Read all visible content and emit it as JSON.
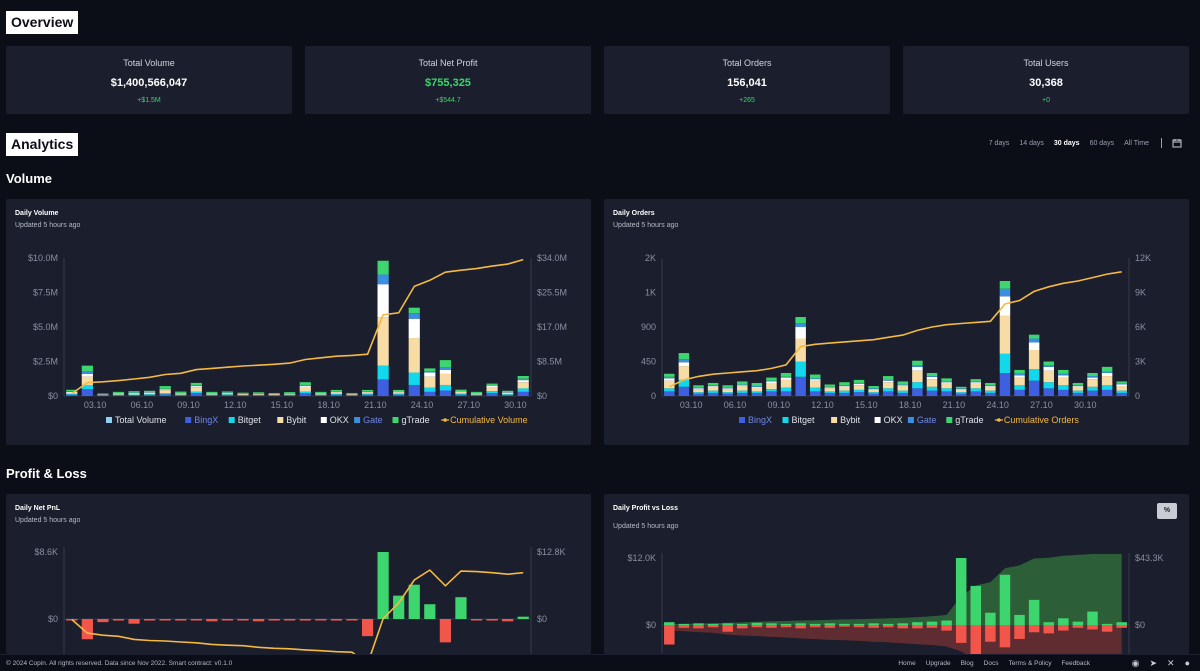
{
  "overview": {
    "label": "Overview",
    "stats": [
      {
        "title": "Total Volume",
        "value": "$1,400,566,047",
        "change": "+$1.5M"
      },
      {
        "title": "Total Net Profit",
        "value": "$755,325",
        "change": "+$544.7"
      },
      {
        "title": "Total Orders",
        "value": "156,041",
        "change": "+265"
      },
      {
        "title": "Total Users",
        "value": "30,368",
        "change": "+0"
      }
    ]
  },
  "analytics": {
    "label": "Analytics",
    "ranges": [
      "7 days",
      "14 days",
      "30 days",
      "60 days",
      "All Time"
    ],
    "active_range": "30 days"
  },
  "volume_heading": "Volume",
  "pnl_heading": "Profit & Loss",
  "panels": {
    "daily_volume": {
      "title": "Daily Volume",
      "updated": "Updated 5 hours ago"
    },
    "daily_orders": {
      "title": "Daily Orders",
      "updated": "Updated 5 hours ago"
    },
    "daily_net_pnl": {
      "title": "Daily Net PnL",
      "updated": "Updated 5 hours ago"
    },
    "daily_profit_loss": {
      "title": "Daily Profit vs Loss",
      "updated": "Updated 5 hours ago",
      "toggle": "%"
    }
  },
  "colors": {
    "total_volume": "#8fd0f5",
    "bingx": "#3d5fe0",
    "bitget": "#13d8ec",
    "bybit": "#f8dca5",
    "okx": "#ffffff",
    "gate": "#3a8fe0",
    "gtrade": "#3dd56d",
    "cumulative": "#f5b942",
    "profit": "#3dd56d",
    "loss": "#f2564b"
  },
  "chart_data": [
    {
      "type": "bar",
      "title": "Daily Volume",
      "stacked": true,
      "x_ticks": [
        "03.10",
        "06.10",
        "09.10",
        "12.10",
        "15.10",
        "18.10",
        "21.10",
        "24.10",
        "27.10",
        "30.10"
      ],
      "y_left_ticks": [
        "$0",
        "$2.5M",
        "$5.0M",
        "$7.5M",
        "$10.0M"
      ],
      "y_right_ticks": [
        "$0",
        "$8.5M",
        "$17.0M",
        "$25.5M",
        "$34.0M"
      ],
      "ylim": [
        0,
        10000000
      ],
      "y2lim": [
        0,
        34000000
      ],
      "legend": [
        "Total Volume",
        "BingX",
        "Bitget",
        "Bybit",
        "OKX",
        "Gate",
        "gTrade",
        "Cumulative Volume"
      ],
      "stack_keys": [
        "bingx",
        "bitget",
        "bybit",
        "okx",
        "gate",
        "gtrade"
      ],
      "stacks": [
        [
          0.1,
          0.05,
          0.1,
          0.05,
          0.05,
          0.1
        ],
        [
          0.5,
          0.3,
          0.6,
          0.2,
          0.2,
          0.4
        ],
        [
          0.04,
          0.02,
          0.04,
          0.02,
          0.02,
          0.04
        ],
        [
          0.06,
          0.04,
          0.08,
          0.02,
          0.02,
          0.08
        ],
        [
          0.07,
          0.04,
          0.09,
          0.03,
          0.02,
          0.1
        ],
        [
          0.08,
          0.05,
          0.1,
          0.03,
          0.02,
          0.1
        ],
        [
          0.12,
          0.08,
          0.22,
          0.06,
          0.04,
          0.2
        ],
        [
          0.06,
          0.04,
          0.08,
          0.02,
          0.02,
          0.1
        ],
        [
          0.2,
          0.12,
          0.32,
          0.08,
          0.06,
          0.17
        ],
        [
          0.06,
          0.04,
          0.08,
          0.02,
          0.02,
          0.08
        ],
        [
          0.08,
          0.04,
          0.08,
          0.03,
          0.02,
          0.08
        ],
        [
          0.05,
          0.03,
          0.06,
          0.02,
          0.02,
          0.06
        ],
        [
          0.06,
          0.03,
          0.06,
          0.02,
          0.02,
          0.08
        ],
        [
          0.05,
          0.03,
          0.06,
          0.01,
          0.01,
          0.06
        ],
        [
          0.06,
          0.04,
          0.06,
          0.02,
          0.02,
          0.08
        ],
        [
          0.2,
          0.12,
          0.3,
          0.1,
          0.08,
          0.2
        ],
        [
          0.06,
          0.04,
          0.08,
          0.02,
          0.02,
          0.08
        ],
        [
          0.1,
          0.05,
          0.12,
          0.03,
          0.02,
          0.12
        ],
        [
          0.05,
          0.03,
          0.05,
          0.02,
          0.02,
          0.05
        ],
        [
          0.1,
          0.06,
          0.12,
          0.03,
          0.03,
          0.1
        ],
        [
          1.2,
          1.0,
          3.5,
          2.4,
          0.7,
          1.0
        ],
        [
          0.1,
          0.06,
          0.12,
          0.04,
          0.02,
          0.1
        ],
        [
          0.8,
          0.9,
          2.5,
          1.4,
          0.4,
          0.4
        ],
        [
          0.3,
          0.3,
          0.8,
          0.3,
          0.1,
          0.2
        ],
        [
          0.4,
          0.4,
          0.8,
          0.3,
          0.2,
          0.5
        ],
        [
          0.1,
          0.08,
          0.12,
          0.04,
          0.02,
          0.1
        ],
        [
          0.06,
          0.04,
          0.08,
          0.02,
          0.02,
          0.08
        ],
        [
          0.2,
          0.15,
          0.3,
          0.1,
          0.05,
          0.1
        ],
        [
          0.08,
          0.05,
          0.1,
          0.03,
          0.02,
          0.1
        ],
        [
          0.3,
          0.25,
          0.45,
          0.15,
          0.1,
          0.2
        ]
      ],
      "cumulative": [
        0.6,
        3.3,
        3.5,
        3.8,
        4.2,
        4.6,
        5.3,
        5.6,
        6.5,
        6.8,
        7.1,
        7.4,
        7.6,
        7.8,
        8.1,
        9.0,
        9.4,
        9.8,
        10.0,
        10.3,
        20.0,
        20.5,
        27.0,
        28.5,
        30.5,
        31.0,
        31.4,
        32.0,
        32.5,
        33.6
      ]
    },
    {
      "type": "bar",
      "title": "Daily Orders",
      "stacked": true,
      "x_ticks": [
        "03.10",
        "06.10",
        "09.10",
        "12.10",
        "15.10",
        "18.10",
        "21.10",
        "24.10",
        "27.10",
        "30.10"
      ],
      "y_left_ticks": [
        "0",
        "450",
        "900",
        "1K",
        "2K"
      ],
      "y_right_ticks": [
        "0",
        "3K",
        "6K",
        "9K",
        "12K"
      ],
      "ylim": [
        0,
        1800
      ],
      "y2lim": [
        0,
        12000
      ],
      "legend": [
        "BingX",
        "Bitget",
        "Bybit",
        "OKX",
        "Gate",
        "gTrade",
        "Cumulative Orders"
      ],
      "stack_keys": [
        "bingx",
        "bitget",
        "bybit",
        "okx",
        "gate",
        "gtrade"
      ],
      "stacks": [
        [
          60,
          40,
          100,
          30,
          20,
          40
        ],
        [
          120,
          90,
          180,
          50,
          40,
          80
        ],
        [
          30,
          20,
          40,
          10,
          10,
          30
        ],
        [
          40,
          30,
          50,
          10,
          10,
          30
        ],
        [
          30,
          20,
          40,
          10,
          10,
          30
        ],
        [
          40,
          30,
          60,
          10,
          10,
          40
        ],
        [
          40,
          20,
          50,
          10,
          10,
          40
        ],
        [
          60,
          30,
          80,
          20,
          10,
          40
        ],
        [
          60,
          50,
          100,
          30,
          10,
          50
        ],
        [
          250,
          200,
          300,
          150,
          50,
          80
        ],
        [
          60,
          50,
          90,
          20,
          10,
          50
        ],
        [
          40,
          20,
          40,
          10,
          10,
          30
        ],
        [
          40,
          30,
          50,
          10,
          10,
          40
        ],
        [
          50,
          30,
          60,
          20,
          10,
          40
        ],
        [
          30,
          20,
          30,
          10,
          10,
          30
        ],
        [
          60,
          40,
          80,
          20,
          10,
          50
        ],
        [
          40,
          30,
          60,
          10,
          10,
          40
        ],
        [
          100,
          80,
          150,
          50,
          20,
          60
        ],
        [
          70,
          50,
          100,
          30,
          10,
          40
        ],
        [
          60,
          40,
          60,
          20,
          10,
          40
        ],
        [
          30,
          20,
          30,
          10,
          10,
          20
        ],
        [
          60,
          40,
          60,
          20,
          10,
          30
        ],
        [
          40,
          30,
          50,
          10,
          10,
          30
        ],
        [
          300,
          250,
          500,
          250,
          100,
          100
        ],
        [
          80,
          60,
          100,
          30,
          20,
          50
        ],
        [
          200,
          150,
          250,
          100,
          50,
          50
        ],
        [
          100,
          80,
          150,
          50,
          20,
          50
        ],
        [
          80,
          60,
          100,
          30,
          20,
          50
        ],
        [
          40,
          30,
          50,
          10,
          10,
          30
        ],
        [
          70,
          50,
          100,
          20,
          20,
          40
        ],
        [
          80,
          60,
          120,
          40,
          20,
          60
        ],
        [
          40,
          30,
          60,
          20,
          10,
          30
        ]
      ],
      "cumulative": [
        800,
        1400,
        1700,
        1900,
        2000,
        2100,
        2200,
        2400,
        2700,
        4300,
        4500,
        4600,
        4700,
        4800,
        4900,
        5100,
        5300,
        5700,
        6000,
        6200,
        6300,
        6400,
        6500,
        8000,
        8300,
        9100,
        9500,
        9800,
        10000,
        10300,
        10600,
        10800
      ]
    },
    {
      "type": "bar",
      "title": "Daily Net PnL",
      "y_left_ticks": [
        "$0",
        "$8.6K"
      ],
      "y_right_ticks": [
        "$0",
        "$12.8K"
      ],
      "ylim": [
        -3000,
        8600
      ],
      "y2lim": [
        -13000,
        12800
      ],
      "values": [
        -100,
        -2600,
        -400,
        -200,
        -600,
        -200,
        -100,
        -200,
        -150,
        -300,
        -150,
        -100,
        -300,
        -200,
        -100,
        -200,
        -150,
        -200,
        -100,
        -2200,
        8600,
        3000,
        4400,
        1900,
        -3000,
        2800,
        -100,
        -200,
        -300,
        300
      ],
      "cumulative": [
        -100,
        -2700,
        -3100,
        -3300,
        -3900,
        -4100,
        -4200,
        -4400,
        -4550,
        -4850,
        -5000,
        -5100,
        -5400,
        -5600,
        -5700,
        -5900,
        -6050,
        -6250,
        -6350,
        -8550,
        50,
        3050,
        7450,
        9350,
        6350,
        9150,
        9050,
        8850,
        8550,
        8850
      ]
    },
    {
      "type": "bar",
      "title": "Daily Profit vs Loss",
      "y_left_ticks": [
        "$0",
        "$12.0K"
      ],
      "y_right_ticks": [
        "$0",
        "$43.3K"
      ],
      "ylim": [
        -6000,
        12000
      ],
      "y2lim": [
        -20000,
        43300
      ],
      "profit": [
        500,
        200,
        300,
        200,
        300,
        200,
        400,
        300,
        200,
        300,
        200,
        300,
        200,
        200,
        300,
        200,
        300,
        500,
        600,
        800,
        12000,
        7000,
        2200,
        9000,
        1800,
        4500,
        500,
        1200,
        600,
        2400,
        200,
        500
      ],
      "loss": [
        -3500,
        -500,
        -600,
        -400,
        -1200,
        -600,
        -400,
        -500,
        -400,
        -600,
        -400,
        -500,
        -300,
        -400,
        -500,
        -400,
        -600,
        -600,
        -500,
        -1000,
        -3200,
        -5500,
        -3000,
        -4000,
        -2500,
        -1300,
        -1500,
        -1000,
        -500,
        -800,
        -1200,
        -500
      ],
      "cum_profit": [
        500,
        700,
        1000,
        1200,
        1500,
        1700,
        2100,
        2400,
        2600,
        2900,
        3100,
        3400,
        3600,
        3800,
        4100,
        4300,
        4600,
        5100,
        5700,
        6500,
        18500,
        25500,
        27700,
        36700,
        38500,
        43000,
        43500,
        44700,
        45300,
        47700,
        47900,
        48400
      ],
      "cum_loss": [
        -3500,
        -4000,
        -4600,
        -5000,
        -6200,
        -6800,
        -7200,
        -7700,
        -8100,
        -8700,
        -9100,
        -9600,
        -9900,
        -10300,
        -10800,
        -11200,
        -11800,
        -12400,
        -12900,
        -13900,
        -17100,
        -22600,
        -25600,
        -29600,
        -32100,
        -33400,
        -34900,
        -35900,
        -36400,
        -37200,
        -38400,
        -38900
      ]
    }
  ],
  "footer": {
    "copyright": "© 2024 Copin. All rights reserved. Data since Nov 2022. Smart contract: v0.1.0",
    "links": [
      "Home",
      "Upgrade",
      "Blog",
      "Docs",
      "Terms & Policy",
      "Feedback"
    ]
  }
}
